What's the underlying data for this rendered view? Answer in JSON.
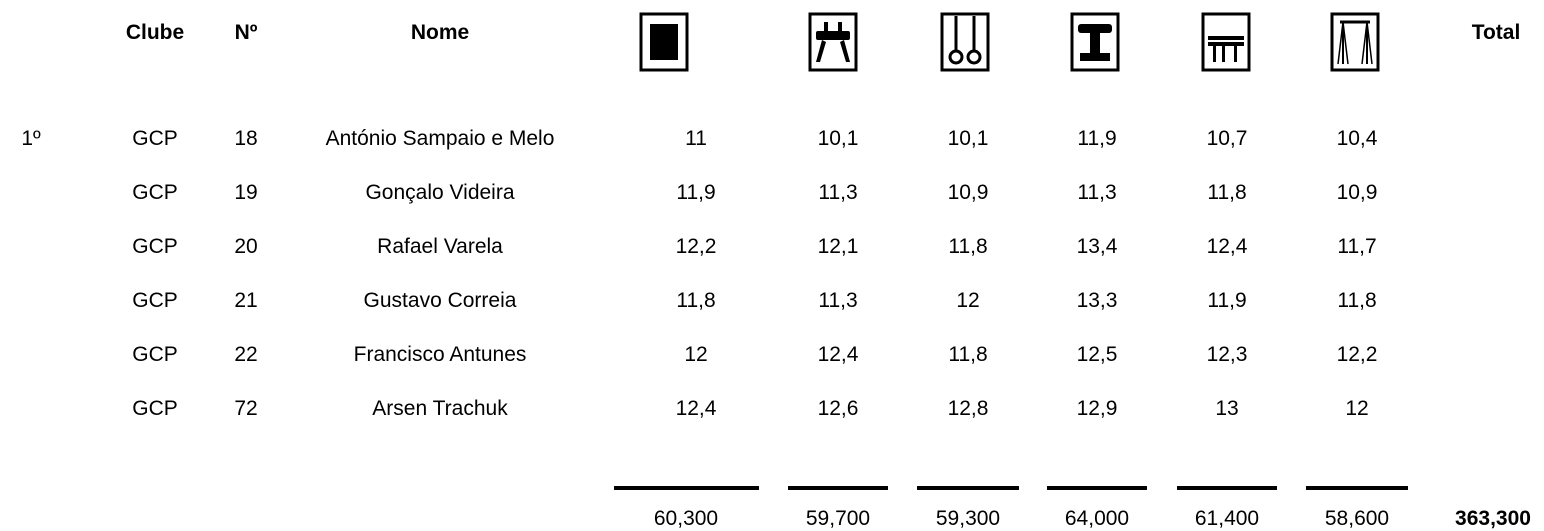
{
  "header": {
    "club": "Clube",
    "number": "Nº",
    "name": "Nome",
    "total": "Total"
  },
  "apparatus_icons": [
    "floor-icon",
    "pommel-horse-icon",
    "rings-icon",
    "vault-icon",
    "parallel-bars-icon",
    "high-bar-icon"
  ],
  "team": {
    "rank": "1º",
    "rows": [
      {
        "club": "GCP",
        "number": "18",
        "name": "António Sampaio e Melo",
        "scores": [
          "11",
          "10,1",
          "10,1",
          "11,9",
          "10,7",
          "10,4"
        ]
      },
      {
        "club": "GCP",
        "number": "19",
        "name": "Gonçalo Videira",
        "scores": [
          "11,9",
          "11,3",
          "10,9",
          "11,3",
          "11,8",
          "10,9"
        ]
      },
      {
        "club": "GCP",
        "number": "20",
        "name": "Rafael Varela",
        "scores": [
          "12,2",
          "12,1",
          "11,8",
          "13,4",
          "12,4",
          "11,7"
        ]
      },
      {
        "club": "GCP",
        "number": "21",
        "name": "Gustavo Correia",
        "scores": [
          "11,8",
          "11,3",
          "12",
          "13,3",
          "11,9",
          "11,8"
        ]
      },
      {
        "club": "GCP",
        "number": "22",
        "name": "Francisco Antunes",
        "scores": [
          "12",
          "12,4",
          "11,8",
          "12,5",
          "12,3",
          "12,2"
        ]
      },
      {
        "club": "GCP",
        "number": "72",
        "name": "Arsen Trachuk",
        "scores": [
          "12,4",
          "12,6",
          "12,8",
          "12,9",
          "13",
          "12"
        ]
      }
    ],
    "apparatus_totals": [
      "60,300",
      "59,700",
      "59,300",
      "64,000",
      "61,400",
      "58,600"
    ],
    "grand_total": "363,300"
  }
}
